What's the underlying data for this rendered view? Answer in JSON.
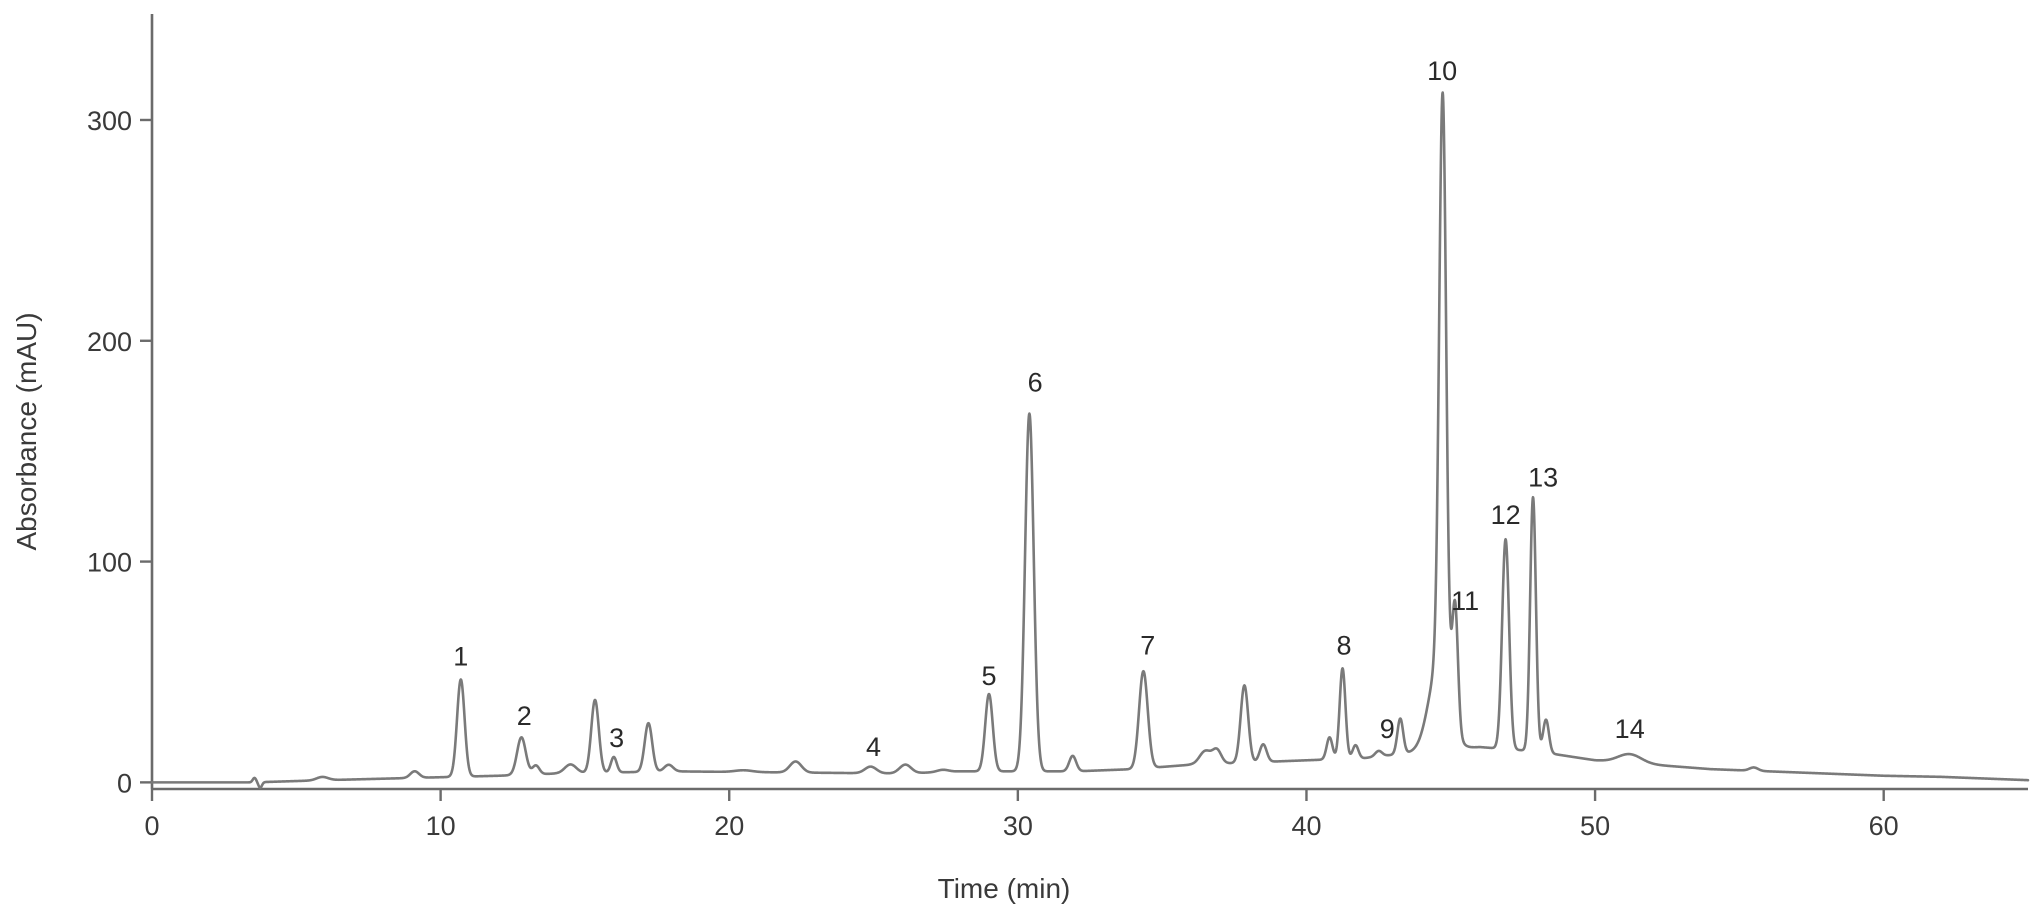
{
  "chart_data": {
    "type": "line",
    "title": "",
    "xlabel": "Time (min)",
    "ylabel": "Absorbance (mAU)",
    "xlim": [
      0,
      65
    ],
    "ylim": [
      -3,
      348
    ],
    "xticks": [
      0,
      10,
      20,
      30,
      40,
      50,
      60
    ],
    "yticks": [
      0,
      100,
      200,
      300
    ],
    "grid": false,
    "legend": "none",
    "colors": {
      "trace": "#7a7a7a",
      "axis": "#6b6b6b",
      "text": "#3a3a3a"
    },
    "baseline": [
      [
        0,
        0
      ],
      [
        3.5,
        0
      ],
      [
        6,
        1
      ],
      [
        9,
        2
      ],
      [
        12,
        3
      ],
      [
        14,
        4
      ],
      [
        18,
        5
      ],
      [
        22,
        4.5
      ],
      [
        26,
        4
      ],
      [
        28,
        5
      ],
      [
        32,
        5
      ],
      [
        34,
        6
      ],
      [
        36,
        8
      ],
      [
        40,
        10
      ],
      [
        42,
        11
      ],
      [
        44,
        14
      ],
      [
        46,
        16
      ],
      [
        48,
        14
      ],
      [
        50,
        10
      ],
      [
        52,
        8
      ],
      [
        54,
        6
      ],
      [
        56,
        5
      ],
      [
        58,
        4
      ],
      [
        60,
        3
      ],
      [
        62,
        2.5
      ],
      [
        65,
        1
      ]
    ],
    "peaks": [
      {
        "t": 3.55,
        "h": 2,
        "w": 0.06
      },
      {
        "t": 3.75,
        "h": -2.5,
        "w": 0.06
      },
      {
        "t": 5.9,
        "h": 1.5,
        "w": 0.2
      },
      {
        "t": 9.1,
        "h": 3,
        "w": 0.15
      },
      {
        "t": 10.7,
        "h": 44,
        "w": 0.13
      },
      {
        "t": 12.8,
        "h": 17,
        "w": 0.15
      },
      {
        "t": 13.3,
        "h": 4,
        "w": 0.12
      },
      {
        "t": 14.5,
        "h": 4,
        "w": 0.2
      },
      {
        "t": 15.35,
        "h": 33,
        "w": 0.13
      },
      {
        "t": 16.0,
        "h": 7,
        "w": 0.1
      },
      {
        "t": 17.2,
        "h": 22,
        "w": 0.13
      },
      {
        "t": 17.9,
        "h": 3,
        "w": 0.15
      },
      {
        "t": 20.5,
        "h": 0.8,
        "w": 0.3
      },
      {
        "t": 22.3,
        "h": 5,
        "w": 0.2
      },
      {
        "t": 24.9,
        "h": 3,
        "w": 0.2
      },
      {
        "t": 26.1,
        "h": 4,
        "w": 0.2
      },
      {
        "t": 27.4,
        "h": 1,
        "w": 0.2
      },
      {
        "t": 29.0,
        "h": 35,
        "w": 0.13
      },
      {
        "t": 30.4,
        "h": 162,
        "w": 0.15
      },
      {
        "t": 31.9,
        "h": 7,
        "w": 0.12
      },
      {
        "t": 34.35,
        "h": 44,
        "w": 0.15
      },
      {
        "t": 36.5,
        "h": 6,
        "w": 0.2
      },
      {
        "t": 36.9,
        "h": 6,
        "w": 0.15
      },
      {
        "t": 37.85,
        "h": 35,
        "w": 0.13
      },
      {
        "t": 38.5,
        "h": 8,
        "w": 0.12
      },
      {
        "t": 40.8,
        "h": 10,
        "w": 0.1
      },
      {
        "t": 41.25,
        "h": 41,
        "w": 0.1
      },
      {
        "t": 41.7,
        "h": 6,
        "w": 0.1
      },
      {
        "t": 42.5,
        "h": 2.5,
        "w": 0.12
      },
      {
        "t": 43.25,
        "h": 16,
        "w": 0.1
      },
      {
        "t": 44.6,
        "h": 40,
        "w": 0.35
      },
      {
        "t": 44.72,
        "h": 260,
        "w": 0.12
      },
      {
        "t": 45.15,
        "h": 55,
        "w": 0.1
      },
      {
        "t": 46.9,
        "h": 95,
        "w": 0.12
      },
      {
        "t": 47.85,
        "h": 115,
        "w": 0.1
      },
      {
        "t": 48.3,
        "h": 15,
        "w": 0.1
      },
      {
        "t": 51.2,
        "h": 4,
        "w": 0.4
      },
      {
        "t": 55.5,
        "h": 1.5,
        "w": 0.15
      }
    ],
    "annotations": [
      {
        "label": "1",
        "t": 10.7,
        "y": 53
      },
      {
        "label": "2",
        "t": 12.9,
        "y": 26
      },
      {
        "label": "3",
        "t": 16.1,
        "y": 16
      },
      {
        "label": "4",
        "t": 25.0,
        "y": 12
      },
      {
        "label": "5",
        "t": 29.0,
        "y": 44
      },
      {
        "label": "6",
        "t": 30.6,
        "y": 177
      },
      {
        "label": "7",
        "t": 34.5,
        "y": 58
      },
      {
        "label": "8",
        "t": 41.3,
        "y": 58
      },
      {
        "label": "9",
        "t": 42.8,
        "y": 20
      },
      {
        "label": "10",
        "t": 44.7,
        "y": 318
      },
      {
        "label": "11",
        "t": 45.5,
        "y": 78
      },
      {
        "label": "12",
        "t": 46.9,
        "y": 117
      },
      {
        "label": "13",
        "t": 48.2,
        "y": 134
      },
      {
        "label": "14",
        "t": 51.2,
        "y": 20
      }
    ]
  }
}
